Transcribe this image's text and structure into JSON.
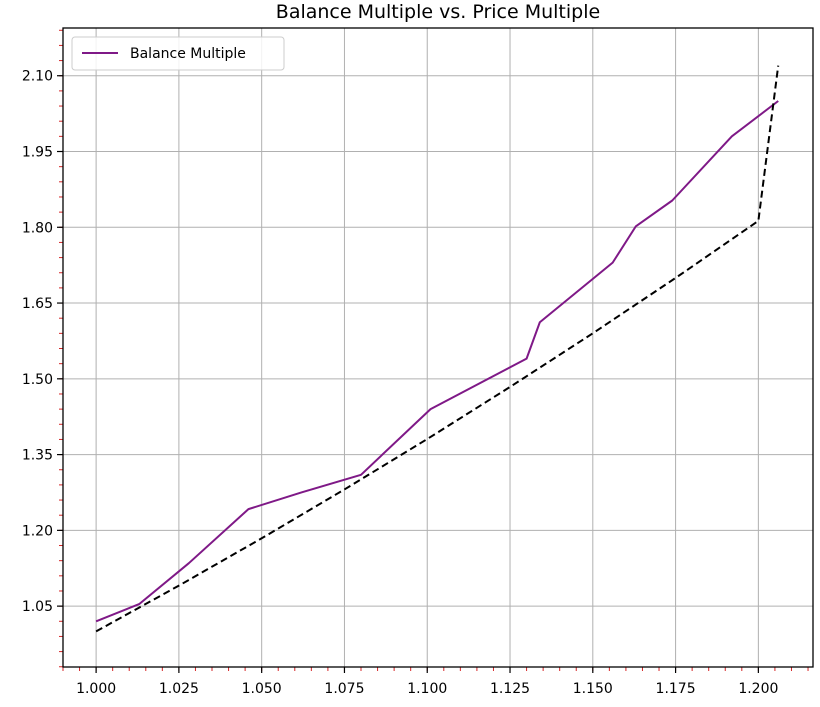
{
  "chart_data": {
    "type": "line",
    "title": "Balance Multiple vs. Price Multiple",
    "xlabel": "",
    "ylabel": "",
    "xlim": [
      0.99,
      1.2165
    ],
    "ylim": [
      0.9295,
      2.1945
    ],
    "xticks": [
      1.0,
      1.025,
      1.05,
      1.075,
      1.1,
      1.125,
      1.15,
      1.175,
      1.2
    ],
    "xtick_labels": [
      "1.000",
      "1.025",
      "1.050",
      "1.075",
      "1.100",
      "1.125",
      "1.150",
      "1.175",
      "1.200"
    ],
    "yticks": [
      1.05,
      1.2,
      1.35,
      1.5,
      1.65,
      1.8,
      1.95,
      2.1
    ],
    "ytick_labels": [
      "1.05",
      "1.20",
      "1.35",
      "1.50",
      "1.65",
      "1.80",
      "1.95",
      "2.10"
    ],
    "grid": true,
    "legend_position": "upper-left",
    "series": [
      {
        "name": "Balance Multiple",
        "color": "#7f1987",
        "style": "solid",
        "x": [
          1.0,
          1.013,
          1.028,
          1.046,
          1.062,
          1.08,
          1.101,
          1.13,
          1.134,
          1.156,
          1.163,
          1.174,
          1.192,
          1.206
        ],
        "y": [
          1.02,
          1.054,
          1.135,
          1.242,
          1.275,
          1.31,
          1.44,
          1.54,
          1.612,
          1.73,
          1.802,
          1.853,
          1.98,
          2.05
        ]
      },
      {
        "color": "#000000",
        "style": "dashed",
        "x": [
          1.0,
          1.025,
          1.05,
          1.075,
          1.1,
          1.125,
          1.15,
          1.175,
          1.2,
          1.206
        ],
        "y": [
          1.0,
          1.0906,
          1.1843,
          1.281,
          1.3808,
          1.4839,
          1.5901,
          1.6997,
          1.8126,
          2.12
        ]
      }
    ]
  },
  "colors": {
    "minor_tick": "#d62728",
    "grid": "#b0b0b0",
    "axis": "#000000"
  }
}
